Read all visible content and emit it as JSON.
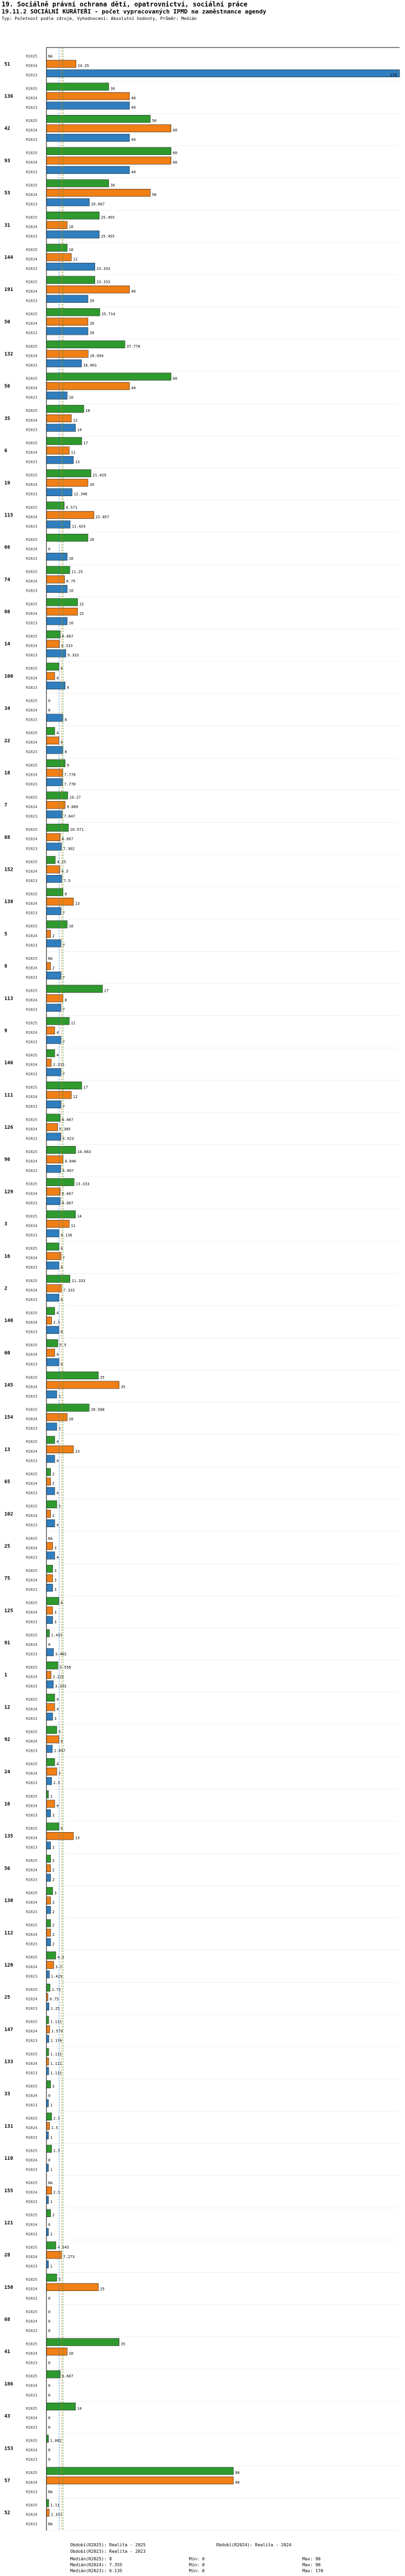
{
  "header": {
    "title": "19. Sociálně právní ochrana dětí, opatrovnictví, sociální práce",
    "subtitle": "19.11.2 SOCIÁLNÍ KURÁTEŘI - počet vypracovaných IPMD na zaměstnance agendy",
    "note": "Typ: Početnost podle zdroje, Vyhodnocení: Absolutní hodnoty, Průměr: Medián"
  },
  "legend": [
    {
      "label": "Období(R2025): Realita - 2025",
      "color": "#2e9a2e"
    },
    {
      "label": "Období(R2024): Realita - 2024",
      "color": "#f07f16"
    },
    {
      "label": "Období(R2023): Realita - 2023",
      "color": "#2f7ebf"
    }
  ],
  "stats": {
    "medians": [
      "Medián(R2025): 8",
      "Medián(R2024): 7.355",
      "Medián(R2023): 6.135"
    ],
    "mins": [
      "Min: 0",
      "Min: 0",
      "Min: 0"
    ],
    "maxs": [
      "Max: 90",
      "Max: 90",
      "Max: 170"
    ]
  },
  "chart_data": {
    "type": "bar",
    "orientation": "horizontal",
    "title": "19.11.2 SOCIÁLNÍ KURÁTEŘI - počet vypracovaných IPMD na zaměstnance agendy",
    "series": [
      {
        "name": "R2025",
        "color": "#2e9a2e"
      },
      {
        "name": "R2024",
        "color": "#f07f16"
      },
      {
        "name": "R2023",
        "color": "#2f7ebf"
      }
    ],
    "xlim": [
      0,
      170
    ],
    "median_lines": [
      8,
      7.355,
      6.135
    ],
    "groups": [
      {
        "label": "51",
        "values": [
          null,
          14.25,
          170
        ]
      },
      {
        "label": "136",
        "values": [
          30,
          40,
          40
        ]
      },
      {
        "label": "42",
        "values": [
          50,
          60,
          40
        ]
      },
      {
        "label": "93",
        "values": [
          60,
          60,
          40
        ]
      },
      {
        "label": "53",
        "values": [
          30,
          50,
          20.667
        ]
      },
      {
        "label": "31",
        "values": [
          25.455,
          10,
          25.455
        ]
      },
      {
        "label": "144",
        "values": [
          10,
          12,
          23.333
        ]
      },
      {
        "label": "191",
        "values": [
          23.333,
          40,
          20
        ]
      },
      {
        "label": "50",
        "values": [
          25.714,
          20,
          20
        ]
      },
      {
        "label": "132",
        "values": [
          37.778,
          20.094,
          16.901
        ]
      },
      {
        "label": "56",
        "values": [
          60,
          40,
          10
        ]
      },
      {
        "label": "35",
        "values": [
          18,
          12,
          14
        ]
      },
      {
        "label": "6",
        "values": [
          17,
          11,
          13
        ]
      },
      {
        "label": "19",
        "values": [
          21.429,
          20,
          12.346
        ]
      },
      {
        "label": "115",
        "values": [
          8.571,
          22.857,
          11.429
        ]
      },
      {
        "label": "66",
        "values": [
          20,
          0,
          10
        ]
      },
      {
        "label": "74",
        "values": [
          11.25,
          8.75,
          10
        ]
      },
      {
        "label": "86",
        "values": [
          15,
          15,
          10
        ]
      },
      {
        "label": "14",
        "values": [
          6.667,
          6.333,
          9.333
        ]
      },
      {
        "label": "100",
        "values": [
          6,
          4,
          9
        ]
      },
      {
        "label": "34",
        "values": [
          0,
          0,
          8
        ]
      },
      {
        "label": "22",
        "values": [
          4,
          6,
          8
        ]
      },
      {
        "label": "18",
        "values": [
          9.0,
          7.778,
          7.778
        ]
      },
      {
        "label": "7",
        "values": [
          10.27,
          9.009,
          7.647
        ]
      },
      {
        "label": "88",
        "values": [
          10.571,
          6.667,
          7.302
        ]
      },
      {
        "label": "152",
        "values": [
          4.25,
          6.5,
          7.5
        ]
      },
      {
        "label": "138",
        "values": [
          8,
          13,
          7
        ]
      },
      {
        "label": "5",
        "values": [
          10,
          2,
          7
        ]
      },
      {
        "label": "8",
        "values": [
          null,
          2,
          7
        ]
      },
      {
        "label": "113",
        "values": [
          27,
          8,
          7
        ]
      },
      {
        "label": "9",
        "values": [
          11,
          4,
          7
        ]
      },
      {
        "label": "146",
        "values": [
          4,
          2.333,
          7
        ]
      },
      {
        "label": "111",
        "values": [
          17,
          12,
          7
        ]
      },
      {
        "label": "126",
        "values": [
          6.667,
          5.385,
          6.923
        ]
      },
      {
        "label": "96",
        "values": [
          14.063,
          8.046,
          6.897
        ]
      },
      {
        "label": "129",
        "values": [
          13.333,
          6.667,
          6.667
        ]
      },
      {
        "label": "3",
        "values": [
          14,
          11,
          6.136
        ]
      },
      {
        "label": "16",
        "values": [
          6,
          7,
          6
        ]
      },
      {
        "label": "2",
        "values": [
          11.333,
          7.333,
          6
        ]
      },
      {
        "label": "140",
        "values": [
          4,
          2.5,
          6
        ]
      },
      {
        "label": "60",
        "values": [
          5.5,
          4,
          6
        ]
      },
      {
        "label": "145",
        "values": [
          25,
          35,
          5
        ]
      },
      {
        "label": "154",
        "values": [
          20.588,
          10,
          5
        ]
      },
      {
        "label": "13",
        "values": [
          4,
          13,
          4
        ]
      },
      {
        "label": "65",
        "values": [
          2,
          2,
          4
        ]
      },
      {
        "label": "102",
        "values": [
          5,
          2,
          4
        ]
      },
      {
        "label": "25",
        "values": [
          null,
          3,
          4
        ]
      },
      {
        "label": "75",
        "values": [
          3,
          3,
          3
        ]
      },
      {
        "label": "125",
        "values": [
          6,
          3,
          3
        ]
      },
      {
        "label": "91",
        "values": [
          1.455,
          0,
          3.403
        ]
      },
      {
        "label": "1",
        "values": [
          5.556,
          2.222,
          3.333
        ]
      },
      {
        "label": "12",
        "values": [
          4,
          4,
          3
        ]
      },
      {
        "label": "92",
        "values": [
          5,
          6,
          2.857
        ]
      },
      {
        "label": "24",
        "values": [
          4,
          5,
          2.5
        ]
      },
      {
        "label": "16",
        "values": [
          1,
          4,
          2
        ]
      },
      {
        "label": "135",
        "values": [
          6,
          13,
          2
        ]
      },
      {
        "label": "56",
        "values": [
          2,
          2,
          2
        ]
      },
      {
        "label": "130",
        "values": [
          3,
          2,
          2
        ]
      },
      {
        "label": "112",
        "values": [
          2,
          2,
          2
        ]
      },
      {
        "label": "120",
        "values": [
          4.5,
          3.5,
          1.429
        ]
      },
      {
        "label": "25",
        "values": [
          1.75,
          0.75,
          1.25
        ]
      },
      {
        "label": "147",
        "values": [
          1.111,
          1.579,
          1.176
        ]
      },
      {
        "label": "133",
        "values": [
          1.111,
          1.111,
          1.111
        ]
      },
      {
        "label": "33",
        "values": [
          2,
          0,
          1
        ]
      },
      {
        "label": "131",
        "values": [
          2.5,
          1.5,
          1
        ]
      },
      {
        "label": "110",
        "values": [
          2.5,
          0,
          1
        ]
      },
      {
        "label": "155",
        "values": [
          null,
          2.5,
          1
        ]
      },
      {
        "label": "121",
        "values": [
          2,
          0,
          1
        ]
      },
      {
        "label": "28",
        "values": [
          4.545,
          7.273,
          1
        ]
      },
      {
        "label": "150",
        "values": [
          5,
          25,
          0
        ]
      },
      {
        "label": "68",
        "values": [
          0,
          0,
          0
        ]
      },
      {
        "label": "41",
        "values": [
          35,
          10,
          0
        ]
      },
      {
        "label": "186",
        "values": [
          6.667,
          0,
          0
        ]
      },
      {
        "label": "43",
        "values": [
          14,
          0,
          0
        ]
      },
      {
        "label": "153",
        "values": [
          1.002,
          0,
          0
        ]
      },
      {
        "label": "57",
        "values": [
          90,
          90,
          null
        ]
      },
      {
        "label": "52",
        "values": [
          1.11,
          1.333,
          null
        ]
      }
    ]
  }
}
